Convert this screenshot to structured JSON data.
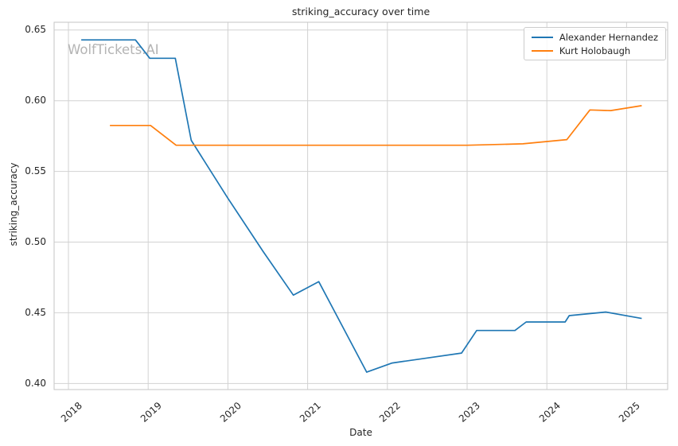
{
  "figure": {
    "watermark": "WolfTickets.AI"
  },
  "colors": {
    "background": "#ffffff",
    "grid": "#d2d2d2",
    "spine": "#c6c6c6",
    "text": "#262626",
    "watermark": "#b4b4b4",
    "series1": "#1f77b4",
    "series2": "#ff7f0e"
  },
  "chart_data": {
    "type": "line",
    "title": "striking_accuracy over time",
    "xlabel": "Date",
    "ylabel": "striking_accuracy",
    "grid": true,
    "legend_position": "upper right",
    "xlim": [
      2017.82,
      2025.515
    ],
    "ylim": [
      0.3957,
      0.6555
    ],
    "x_ticks": [
      2018,
      2019,
      2020,
      2021,
      2022,
      2023,
      2024,
      2025
    ],
    "y_ticks": [
      0.4,
      0.45,
      0.5,
      0.55,
      0.6,
      0.65
    ],
    "series": [
      {
        "name": "Alexander Hernandez",
        "color": "#1f77b4",
        "points": [
          [
            2018.16,
            0.643
          ],
          [
            2018.84,
            0.643
          ],
          [
            2019.02,
            0.63
          ],
          [
            2019.34,
            0.63
          ],
          [
            2019.54,
            0.572
          ],
          [
            2020.0,
            0.531
          ],
          [
            2020.44,
            0.4935
          ],
          [
            2020.82,
            0.4625
          ],
          [
            2021.14,
            0.472
          ],
          [
            2021.74,
            0.408
          ],
          [
            2022.06,
            0.4145
          ],
          [
            2022.5,
            0.418
          ],
          [
            2022.93,
            0.4215
          ],
          [
            2023.12,
            0.4375
          ],
          [
            2023.6,
            0.4375
          ],
          [
            2023.74,
            0.4435
          ],
          [
            2024.23,
            0.4435
          ],
          [
            2024.28,
            0.448
          ],
          [
            2024.74,
            0.4505
          ],
          [
            2025.19,
            0.446
          ]
        ]
      },
      {
        "name": "Kurt Holobaugh",
        "color": "#ff7f0e",
        "points": [
          [
            2018.52,
            0.5825
          ],
          [
            2019.03,
            0.5825
          ],
          [
            2019.35,
            0.5685
          ],
          [
            2023.0,
            0.5685
          ],
          [
            2023.7,
            0.5695
          ],
          [
            2024.25,
            0.5725
          ],
          [
            2024.54,
            0.5935
          ],
          [
            2024.8,
            0.593
          ],
          [
            2025.19,
            0.5965
          ]
        ]
      }
    ]
  }
}
